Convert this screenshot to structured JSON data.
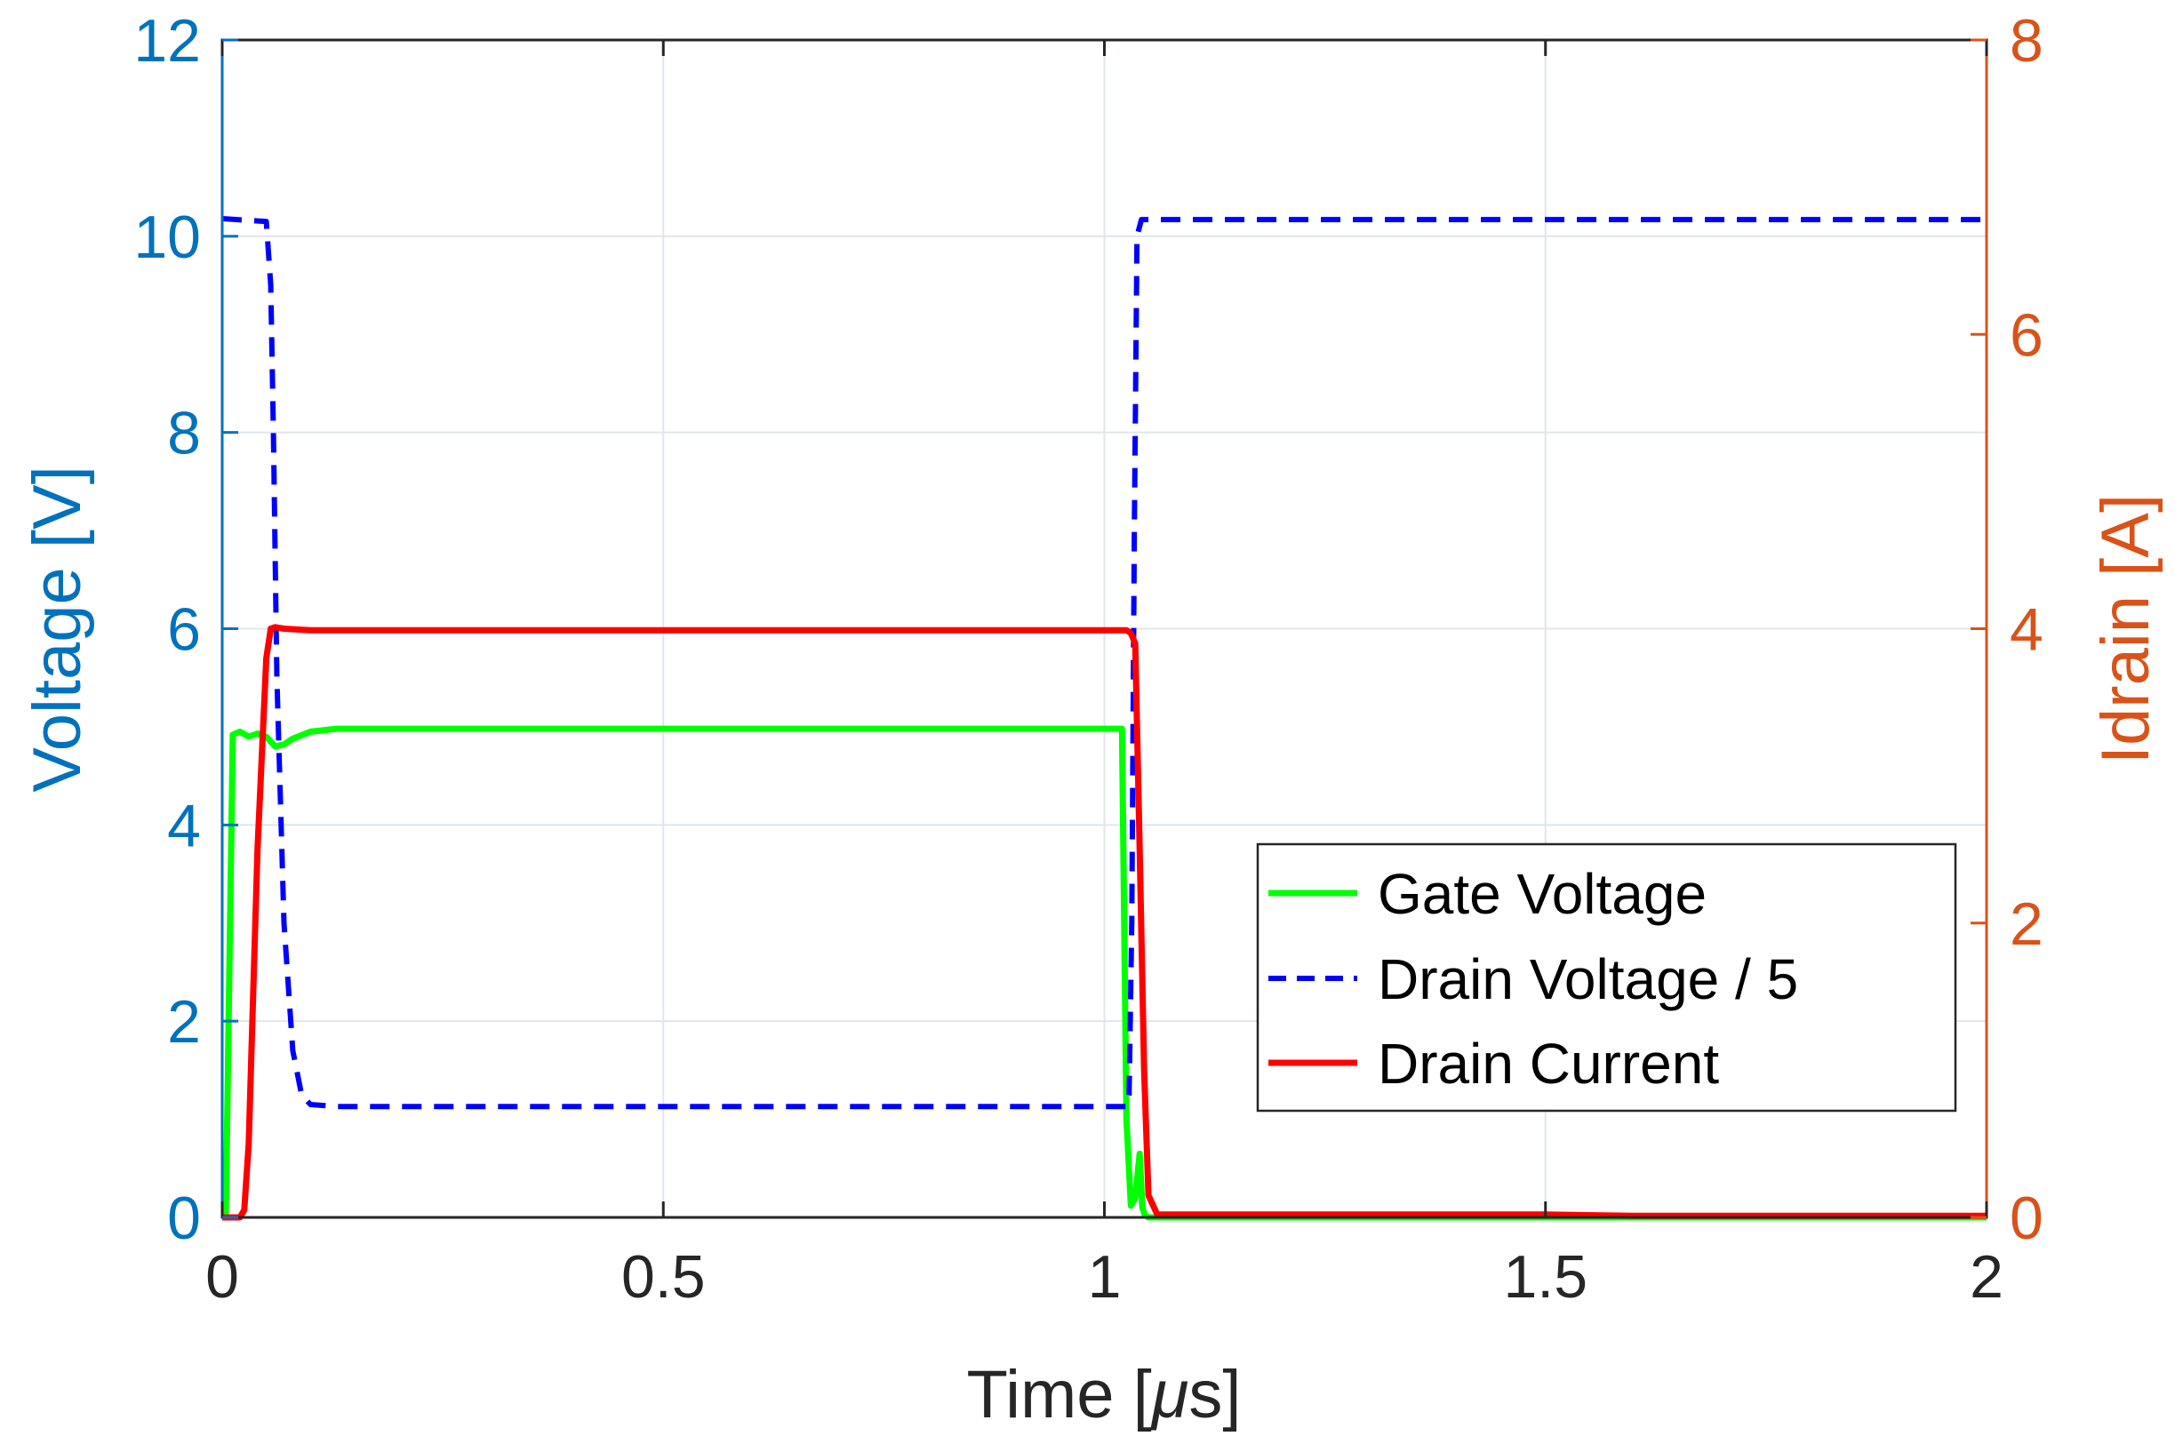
{
  "chart_data": {
    "type": "line",
    "title": "",
    "xlabel": "Time [μs]",
    "xlabel_prefix": "Time [",
    "xlabel_unit": "μ",
    "xlabel_suffix": "s]",
    "ylabel_left": "Voltage [V]",
    "ylabel_right": "Idrain [A]",
    "xlim": [
      0,
      2
    ],
    "ylim_left": [
      0,
      12
    ],
    "ylim_right": [
      0,
      8
    ],
    "xticks": [
      0,
      0.5,
      1,
      1.5,
      2
    ],
    "xtick_labels": [
      "0",
      "0.5",
      "1",
      "1.5",
      "2"
    ],
    "yticks_left": [
      0,
      2,
      4,
      6,
      8,
      10,
      12
    ],
    "ytick_labels_left": [
      "0",
      "2",
      "4",
      "6",
      "8",
      "10",
      "12"
    ],
    "yticks_right": [
      0,
      2,
      4,
      6,
      8
    ],
    "ytick_labels_right": [
      "0",
      "2",
      "4",
      "6",
      "8"
    ],
    "grid": true,
    "legend_position": "bottom-right",
    "colors": {
      "left_axis": "#0072BD",
      "right_axis": "#D95319",
      "grid": "#dfe6ee",
      "frame": "#262626"
    },
    "series": [
      {
        "name": "Gate Voltage",
        "axis": "left",
        "color": "#00ff00",
        "style": "solid",
        "x": [
          0,
          0.004,
          0.012,
          0.02,
          0.03,
          0.04,
          0.05,
          0.06,
          0.07,
          0.08,
          0.1,
          0.13,
          0.2,
          0.5,
          0.8,
          1.0,
          1.02,
          1.025,
          1.03,
          1.035,
          1.04,
          1.043,
          1.046,
          1.05,
          1.06,
          1.5,
          2.0
        ],
        "y": [
          0,
          0.0,
          4.92,
          4.95,
          4.9,
          4.93,
          4.9,
          4.8,
          4.82,
          4.88,
          4.95,
          4.98,
          4.98,
          4.98,
          4.98,
          4.98,
          4.98,
          1.0,
          0.12,
          0.2,
          0.65,
          0.1,
          0.02,
          0.0,
          0.0,
          0.0,
          0.0
        ]
      },
      {
        "name": "Drain Voltage / 5",
        "axis": "left",
        "color": "#0000ff",
        "style": "dashed",
        "x": [
          0,
          0.05,
          0.055,
          0.058,
          0.062,
          0.07,
          0.08,
          0.09,
          0.1,
          0.13,
          0.5,
          1.0,
          1.025,
          1.028,
          1.031,
          1.034,
          1.037,
          1.042,
          1.05,
          1.5,
          2.0
        ],
        "y": [
          10.18,
          10.15,
          9.5,
          8.0,
          5.5,
          3.0,
          1.7,
          1.25,
          1.15,
          1.13,
          1.13,
          1.13,
          1.13,
          1.25,
          3.0,
          7.0,
          10.0,
          10.17,
          10.17,
          10.17,
          10.17
        ]
      },
      {
        "name": "Drain Current",
        "axis": "right",
        "color": "#ff0000",
        "style": "solid",
        "x": [
          0,
          0.02,
          0.025,
          0.03,
          0.04,
          0.05,
          0.055,
          0.06,
          0.07,
          0.1,
          0.3,
          0.6,
          0.9,
          1.0,
          1.025,
          1.03,
          1.035,
          1.04,
          1.045,
          1.05,
          1.06,
          1.5,
          1.6,
          2.0
        ],
        "y": [
          0.0,
          0.0,
          0.05,
          0.5,
          2.5,
          3.8,
          4.0,
          4.01,
          4.0,
          3.99,
          3.99,
          3.99,
          3.99,
          3.99,
          3.99,
          3.97,
          3.9,
          2.5,
          1.0,
          0.15,
          0.02,
          0.02,
          0.01,
          0.01
        ]
      }
    ]
  }
}
